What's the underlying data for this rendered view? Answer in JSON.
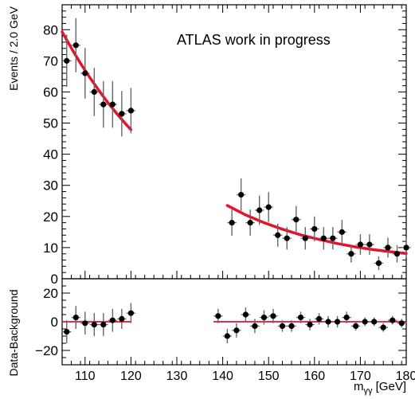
{
  "chart_data": [
    {
      "type": "scatter",
      "panel": "main",
      "annotation": "ATLAS work in progress",
      "ylabel": "Events / 2.0 GeV",
      "xlim": [
        105,
        180
      ],
      "ylim": [
        0,
        88
      ],
      "xticks": [
        110,
        120,
        130,
        140,
        150,
        160,
        170,
        180
      ],
      "yticks": [
        0,
        10,
        20,
        30,
        40,
        50,
        60,
        70,
        80
      ],
      "bin_width": 2,
      "series": [
        {
          "marker": "black-dot-with-error-bars",
          "x": [
            106,
            108,
            110,
            112,
            114,
            116,
            118,
            120,
            142,
            144,
            146,
            148,
            150,
            152,
            154,
            156,
            158,
            160,
            162,
            164,
            166,
            168,
            170,
            172,
            174,
            176,
            178,
            180
          ],
          "y": [
            70,
            75,
            66,
            60,
            56,
            56,
            53,
            54,
            18,
            27,
            18,
            22,
            23,
            14,
            13,
            19,
            13,
            16,
            13,
            13,
            15,
            8,
            11,
            11,
            5,
            10,
            8,
            10
          ],
          "yerr": [
            8.4,
            8.7,
            8.1,
            7.7,
            7.5,
            7.5,
            7.3,
            7.3,
            4.2,
            5.2,
            4.2,
            4.7,
            4.8,
            3.7,
            3.6,
            4.4,
            3.6,
            4.0,
            3.6,
            3.6,
            3.9,
            2.8,
            3.3,
            3.3,
            2.2,
            3.2,
            2.8,
            3.2
          ]
        }
      ],
      "fits": [
        {
          "color": "#e8112d",
          "x": [
            105,
            107,
            109,
            111,
            113,
            115,
            117,
            119,
            120
          ],
          "y": [
            79.3,
            74.1,
            69.2,
            64.7,
            60.5,
            56.5,
            52.9,
            49.5,
            47.9
          ]
        },
        {
          "color": "#e8112d",
          "x": [
            141,
            145,
            149,
            153,
            157,
            161,
            165,
            169,
            173,
            177,
            180
          ],
          "y": [
            23.5,
            20.5,
            18.0,
            15.9,
            14.1,
            12.6,
            11.3,
            10.2,
            9.3,
            8.6,
            8.1
          ]
        }
      ],
      "grid": false
    },
    {
      "type": "scatter",
      "panel": "residual",
      "xlabel": "mγγ [GeV]",
      "ylabel": "Data-Background",
      "xlim": [
        105,
        180
      ],
      "ylim": [
        -30,
        30
      ],
      "xticks": [
        110,
        120,
        130,
        140,
        150,
        160,
        170,
        180
      ],
      "xticklabels": [
        "110",
        "120",
        "130",
        "140",
        "150",
        "160",
        "170",
        "180"
      ],
      "yticks": [
        -20,
        0,
        20
      ],
      "yticklabels": [
        "−20",
        "0",
        "20"
      ],
      "zero_line_ranges": [
        [
          105,
          120
        ],
        [
          138,
          180
        ]
      ],
      "series": [
        {
          "marker": "black-dot-with-error-bars",
          "x": [
            106,
            108,
            110,
            112,
            114,
            116,
            118,
            120,
            139,
            141,
            143,
            145,
            147,
            149,
            151,
            153,
            155,
            157,
            159,
            161,
            163,
            165,
            167,
            169,
            171,
            173,
            175,
            177,
            179
          ],
          "y": [
            -7,
            3,
            -1,
            -2,
            -2,
            1,
            2,
            6,
            4,
            -10,
            -6,
            5,
            -3,
            3,
            4,
            -3,
            -3,
            3,
            -2,
            2,
            0,
            0,
            3,
            -3,
            0,
            0,
            -4,
            1,
            -1
          ],
          "yerr": [
            8,
            8,
            8,
            8,
            8,
            8,
            7,
            7,
            5,
            5,
            5,
            5,
            5,
            5,
            5,
            4,
            4,
            4,
            4,
            4,
            4,
            4,
            4,
            3,
            3,
            3,
            3,
            3,
            3
          ]
        }
      ],
      "grid": false
    }
  ]
}
